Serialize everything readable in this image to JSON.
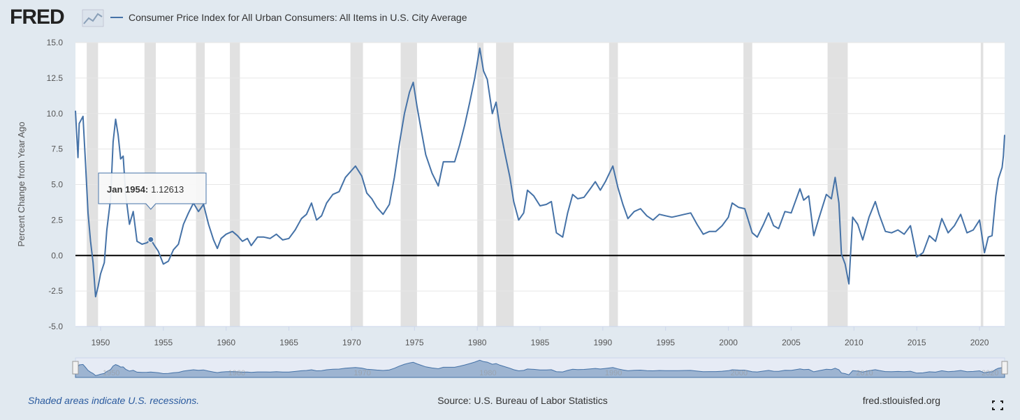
{
  "chart_data": {
    "type": "line",
    "logo": "FRED",
    "y_label": "Percent Change from Year Ago",
    "footer_left": "Shaded areas indicate U.S. recessions.",
    "footer_center": "Source: U.S. Bureau of Labor Statistics",
    "footer_right": "fred.stlouisfed.org",
    "xlim": [
      1948,
      2022
    ],
    "xticks": [
      1950,
      1955,
      1960,
      1965,
      1970,
      1975,
      1980,
      1985,
      1990,
      1995,
      2000,
      2005,
      2010,
      2015,
      2020
    ],
    "ylim": [
      -5,
      15
    ],
    "yticks": [
      {
        "value": 15,
        "label": "15.0"
      },
      12.5,
      {
        "value": 10,
        "label": "10.0"
      },
      7.5,
      {
        "value": 5,
        "label": "5.0"
      },
      2.5,
      {
        "value": 0,
        "label": "0.0"
      },
      -2.5,
      {
        "value": -5,
        "label": "-5.0"
      }
    ],
    "grid": true,
    "zero_line": true,
    "navigator_xticks": [
      1950,
      1960,
      1970,
      1980,
      1990,
      2000,
      2010,
      2020
    ],
    "recessions": [
      [
        1948.9,
        1949.8
      ],
      [
        1953.5,
        1954.4
      ],
      [
        1957.6,
        1958.3
      ],
      [
        1960.3,
        1961.1
      ],
      [
        1969.9,
        1970.9
      ],
      [
        1973.9,
        1975.2
      ],
      [
        1980.0,
        1980.5
      ],
      [
        1981.5,
        1982.9
      ],
      [
        1990.5,
        1991.2
      ],
      [
        2001.2,
        2001.9
      ],
      [
        2007.9,
        2009.5
      ],
      [
        2020.1,
        2020.3
      ]
    ],
    "tooltip": {
      "label": "Jan 1954:",
      "x": 1954.0,
      "value": 1.12613
    },
    "x": [
      1948.0,
      1948.2,
      1948.3,
      1948.6,
      1948.8,
      1949.0,
      1949.2,
      1949.4,
      1949.6,
      1949.8,
      1950.0,
      1950.3,
      1950.5,
      1950.8,
      1951.0,
      1951.2,
      1951.4,
      1951.6,
      1951.8,
      1952.0,
      1952.3,
      1952.6,
      1952.9,
      1953.3,
      1953.7,
      1954.0,
      1954.3,
      1954.6,
      1955.0,
      1955.4,
      1955.8,
      1956.2,
      1956.6,
      1957.0,
      1957.4,
      1957.8,
      1958.2,
      1958.6,
      1959.0,
      1959.3,
      1959.6,
      1960.0,
      1960.5,
      1960.9,
      1961.3,
      1961.7,
      1962.0,
      1962.5,
      1963.0,
      1963.5,
      1964.0,
      1964.5,
      1965.0,
      1965.5,
      1966.0,
      1966.4,
      1966.8,
      1967.2,
      1967.6,
      1968.0,
      1968.5,
      1969.0,
      1969.5,
      1970.0,
      1970.3,
      1970.8,
      1971.2,
      1971.6,
      1972.0,
      1972.5,
      1973.0,
      1973.4,
      1973.8,
      1974.2,
      1974.6,
      1974.9,
      1975.2,
      1975.5,
      1975.9,
      1976.4,
      1976.9,
      1977.3,
      1977.8,
      1978.2,
      1978.6,
      1979.0,
      1979.4,
      1979.8,
      1980.2,
      1980.5,
      1980.8,
      1981.2,
      1981.5,
      1981.8,
      1982.2,
      1982.6,
      1982.9,
      1983.3,
      1983.7,
      1984.0,
      1984.5,
      1985.0,
      1985.5,
      1985.9,
      1986.3,
      1986.8,
      1987.2,
      1987.6,
      1988.0,
      1988.5,
      1989.0,
      1989.4,
      1989.8,
      1990.2,
      1990.8,
      1991.2,
      1991.6,
      1992.0,
      1992.5,
      1993.0,
      1993.5,
      1994.0,
      1994.5,
      1995.0,
      1995.5,
      1996.0,
      1996.5,
      1997.0,
      1997.5,
      1998.0,
      1998.5,
      1999.0,
      1999.5,
      2000.0,
      2000.3,
      2000.8,
      2001.3,
      2001.9,
      2002.3,
      2002.8,
      2003.2,
      2003.6,
      2004.0,
      2004.5,
      2005.0,
      2005.7,
      2006.0,
      2006.4,
      2006.8,
      2007.2,
      2007.8,
      2008.2,
      2008.5,
      2008.8,
      2009.0,
      2009.3,
      2009.6,
      2009.9,
      2010.3,
      2010.7,
      2011.2,
      2011.7,
      2012.0,
      2012.5,
      2013.0,
      2013.5,
      2014.0,
      2014.5,
      2015.0,
      2015.5,
      2016.0,
      2016.5,
      2017.0,
      2017.5,
      2018.0,
      2018.5,
      2019.0,
      2019.5,
      2020.0,
      2020.4,
      2020.7,
      2021.0,
      2021.3,
      2021.5,
      2021.8,
      2021.9,
      2022.0
    ],
    "series": [
      {
        "name": "Consumer Price Index for All Urban Consumers: All Items in U.S. City Average",
        "color": "#4572a7",
        "values": [
          10.2,
          6.9,
          9.3,
          9.8,
          6.5,
          3.0,
          1.0,
          -0.5,
          -2.9,
          -2.2,
          -1.3,
          -0.5,
          1.8,
          4.0,
          8.0,
          9.6,
          8.5,
          6.8,
          7.0,
          4.3,
          2.2,
          3.1,
          1.0,
          0.8,
          0.9,
          1.12613,
          0.7,
          0.3,
          -0.6,
          -0.4,
          0.4,
          0.8,
          2.2,
          3.0,
          3.7,
          3.1,
          3.6,
          2.2,
          1.1,
          0.5,
          1.2,
          1.5,
          1.7,
          1.4,
          1.0,
          1.2,
          0.7,
          1.3,
          1.3,
          1.2,
          1.5,
          1.1,
          1.2,
          1.8,
          2.6,
          2.9,
          3.7,
          2.5,
          2.8,
          3.7,
          4.3,
          4.5,
          5.5,
          6.0,
          6.3,
          5.6,
          4.4,
          4.0,
          3.4,
          2.9,
          3.6,
          5.5,
          7.9,
          10.0,
          11.5,
          12.2,
          10.5,
          9.0,
          7.1,
          5.8,
          4.9,
          6.6,
          6.6,
          6.6,
          7.8,
          9.2,
          10.8,
          12.5,
          14.6,
          13.0,
          12.4,
          10.0,
          10.8,
          9.0,
          7.2,
          5.5,
          3.8,
          2.5,
          3.0,
          4.6,
          4.2,
          3.5,
          3.6,
          3.8,
          1.6,
          1.3,
          3.0,
          4.3,
          4.0,
          4.1,
          4.7,
          5.2,
          4.6,
          5.2,
          6.3,
          4.8,
          3.6,
          2.6,
          3.1,
          3.3,
          2.8,
          2.5,
          2.9,
          2.8,
          2.7,
          2.8,
          2.9,
          3.0,
          2.2,
          1.5,
          1.7,
          1.7,
          2.1,
          2.7,
          3.7,
          3.4,
          3.3,
          1.6,
          1.3,
          2.2,
          3.0,
          2.1,
          1.9,
          3.1,
          3.0,
          4.7,
          3.9,
          4.2,
          1.4,
          2.6,
          4.3,
          4.0,
          5.5,
          3.7,
          0.1,
          -0.6,
          -2.0,
          2.7,
          2.2,
          1.1,
          2.7,
          3.8,
          2.9,
          1.7,
          1.6,
          1.8,
          1.5,
          2.1,
          -0.1,
          0.2,
          1.4,
          1.0,
          2.6,
          1.6,
          2.1,
          2.9,
          1.6,
          1.8,
          2.5,
          0.2,
          1.3,
          1.4,
          4.2,
          5.4,
          6.2,
          7.0,
          8.5
        ]
      }
    ]
  }
}
